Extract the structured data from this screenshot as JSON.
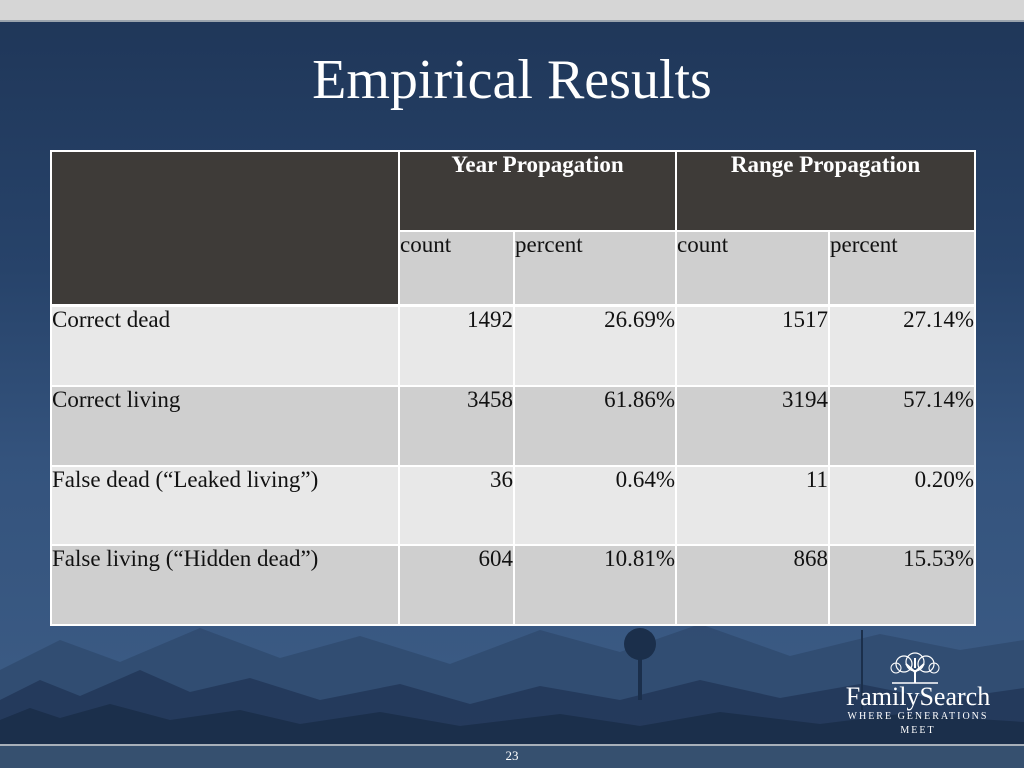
{
  "slide": {
    "title": "Empirical Results",
    "page_number": "23"
  },
  "table": {
    "group_headers": [
      "Year Propagation",
      "Range Propagation"
    ],
    "sub_headers": [
      "count",
      "percent",
      "count",
      "percent"
    ],
    "rows": [
      {
        "label": "Correct dead",
        "values": [
          "1492",
          "26.69%",
          "1517",
          "27.14%"
        ]
      },
      {
        "label": "Correct living",
        "values": [
          "3458",
          "61.86%",
          "3194",
          "57.14%"
        ]
      },
      {
        "label": "False dead (“Leaked living”)",
        "values": [
          "36",
          "0.64%",
          "11",
          "0.20%"
        ]
      },
      {
        "label": "False living (“Hidden dead”)",
        "values": [
          "604",
          "10.81%",
          "868",
          "15.53%"
        ]
      }
    ]
  },
  "logo": {
    "name": "FamilySearch",
    "tagline": "WHERE GENERATIONS MEET",
    "icon": "tree-icon"
  },
  "colors": {
    "background": "#27436a",
    "header_dark": "#3e3b38",
    "row_light": "#e8e8e8",
    "row_dark": "#cfcfcf",
    "title_text": "#ffffff"
  }
}
